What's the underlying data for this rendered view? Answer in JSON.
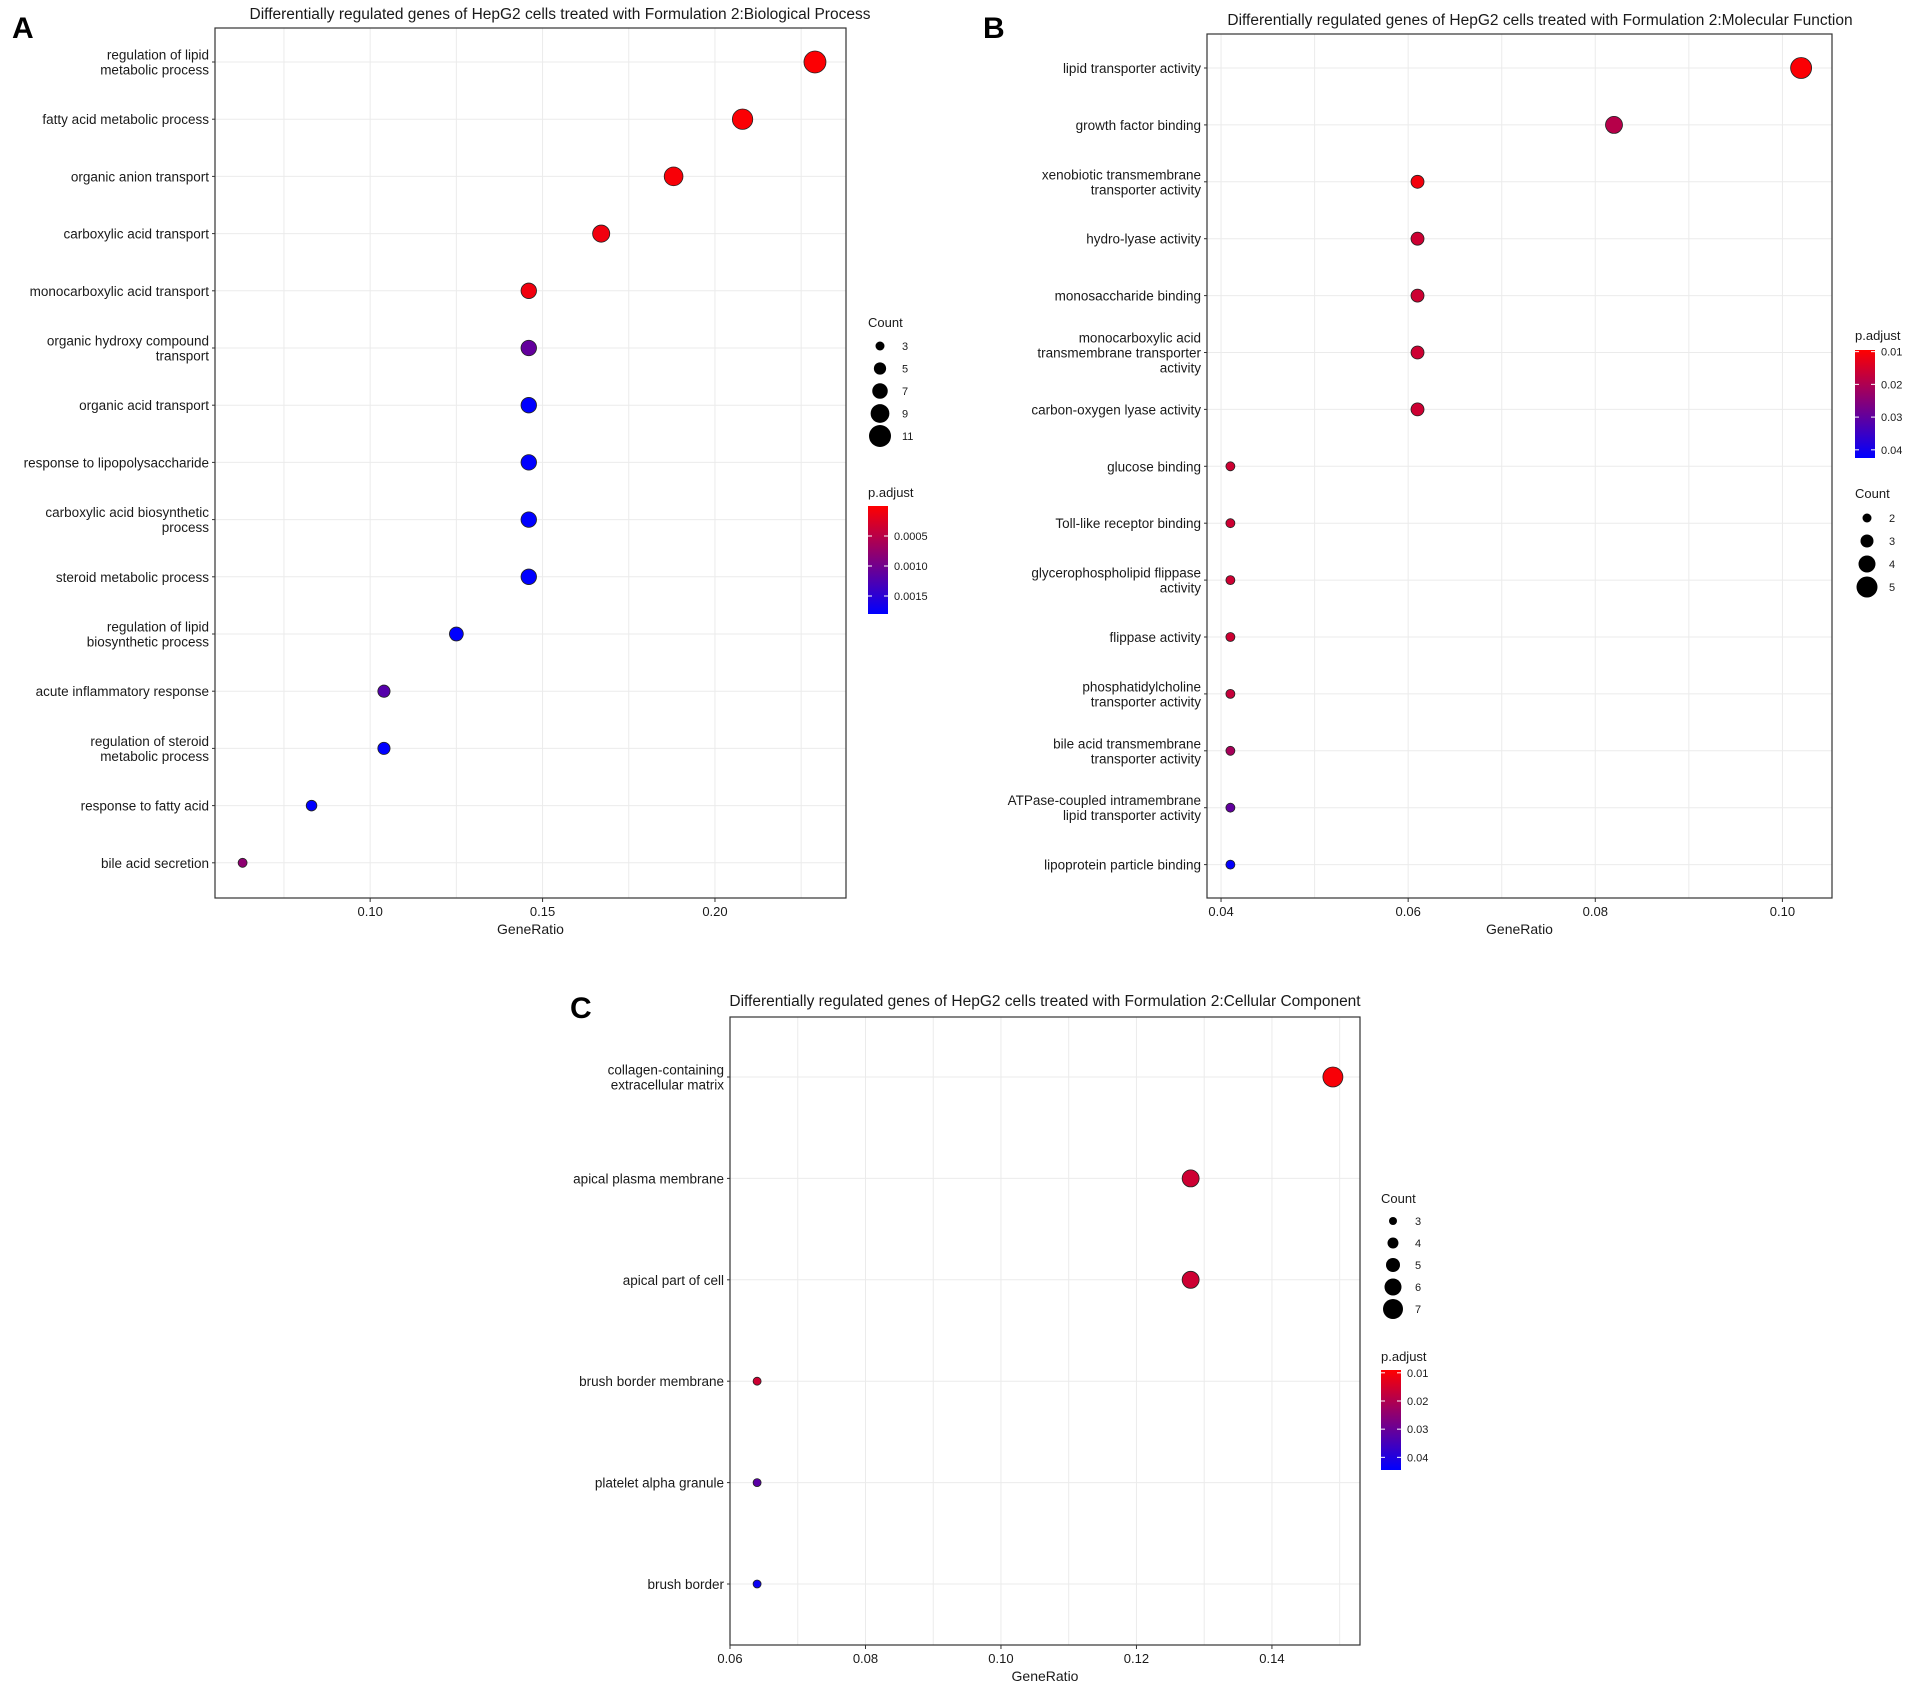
{
  "figure": {
    "panels": [
      "A",
      "B",
      "C"
    ]
  },
  "chart_data": [
    {
      "panel": "A",
      "type": "scatter",
      "title": "Differentially regulated genes of HepG2 cells treated with Formulation 2:Biological Process",
      "xlabel": "GeneRatio",
      "ylabel": "",
      "xlim": [
        0.055,
        0.238
      ],
      "x_ticks": [
        0.1,
        0.15,
        0.2
      ],
      "x_tick_labels": [
        "0.10",
        "0.15",
        "0.20"
      ],
      "grid": true,
      "categories": [
        "regulation of lipid\nmetabolic process",
        "fatty acid metabolic process",
        "organic anion transport",
        "carboxylic acid transport",
        "monocarboxylic acid transport",
        "organic hydroxy compound\ntransport",
        "organic acid transport",
        "response to lipopolysaccharide",
        "carboxylic acid biosynthetic\nprocess",
        "steroid metabolic process",
        "regulation of lipid\nbiosynthetic process",
        "acute inflammatory response",
        "regulation of steroid\nmetabolic process",
        "response to fatty acid",
        "bile acid secretion"
      ],
      "x": [
        0.229,
        0.208,
        0.188,
        0.167,
        0.146,
        0.146,
        0.146,
        0.146,
        0.146,
        0.146,
        0.125,
        0.104,
        0.104,
        0.083,
        0.063
      ],
      "count": [
        11,
        10,
        9,
        8,
        7,
        7,
        7,
        7,
        7,
        7,
        6,
        5,
        5,
        4,
        3
      ],
      "p_adjust": [
        2e-05,
        3e-05,
        5e-05,
        0.0001,
        0.0001,
        0.0011,
        0.0018,
        0.0018,
        0.0018,
        0.0018,
        0.0018,
        0.0012,
        0.0018,
        0.0018,
        0.0008
      ],
      "size_legend": {
        "title": "Count",
        "values": [
          3,
          5,
          7,
          9,
          11
        ],
        "labels": [
          "3",
          "5",
          "7",
          "9",
          "11"
        ]
      },
      "color_legend": {
        "title": "p.adjust",
        "min": 0.0,
        "max": 0.0018,
        "ticks": [
          0.0005,
          0.001,
          0.0015
        ],
        "tick_labels": [
          "0.0005",
          "0.0010",
          "0.0015"
        ]
      },
      "colors": {
        "low": "#ff0000",
        "high": "#0000ff"
      }
    },
    {
      "panel": "B",
      "type": "scatter",
      "title": "Differentially regulated genes of HepG2 cells treated with Formulation 2:Molecular Function",
      "xlabel": "GeneRatio",
      "ylabel": "",
      "xlim": [
        0.0385,
        0.1053
      ],
      "x_ticks": [
        0.04,
        0.06,
        0.08,
        0.1
      ],
      "x_tick_labels": [
        "0.04",
        "0.06",
        "0.08",
        "0.10"
      ],
      "grid": true,
      "categories": [
        "lipid transporter activity",
        "growth factor binding",
        "xenobiotic transmembrane\ntransporter activity",
        "hydro-lyase activity",
        "monosaccharide binding",
        "monocarboxylic acid\ntransmembrane transporter\nactivity",
        "carbon-oxygen lyase activity",
        "glucose binding",
        "Toll-like receptor binding",
        "glycerophospholipid flippase\nactivity",
        "flippase activity",
        "phosphatidylcholine\ntransporter activity",
        "bile acid transmembrane\ntransporter activity",
        "ATPase-coupled intramembrane\nlipid transporter activity",
        "lipoprotein particle binding"
      ],
      "x": [
        0.102,
        0.082,
        0.061,
        0.061,
        0.061,
        0.061,
        0.061,
        0.041,
        0.041,
        0.041,
        0.041,
        0.041,
        0.041,
        0.041,
        0.041
      ],
      "count": [
        5,
        4,
        3,
        3,
        3,
        3,
        3,
        2,
        2,
        2,
        2,
        2,
        2,
        2,
        2
      ],
      "p_adjust": [
        0.01,
        0.019,
        0.011,
        0.016,
        0.016,
        0.016,
        0.016,
        0.016,
        0.016,
        0.016,
        0.016,
        0.017,
        0.021,
        0.03,
        0.042
      ],
      "size_legend": {
        "title": "Count",
        "values": [
          2,
          3,
          4,
          5
        ],
        "labels": [
          "2",
          "3",
          "4",
          "5"
        ]
      },
      "color_legend": {
        "title": "p.adjust",
        "min": 0.0095,
        "max": 0.0425,
        "ticks": [
          0.01,
          0.02,
          0.03,
          0.04
        ],
        "tick_labels": [
          "0.01",
          "0.02",
          "0.03",
          "0.04"
        ]
      },
      "colors": {
        "low": "#ff0000",
        "high": "#0000ff"
      }
    },
    {
      "panel": "C",
      "type": "scatter",
      "title": "Differentially regulated genes of HepG2 cells treated with Formulation 2:Cellular Component",
      "xlabel": "GeneRatio",
      "ylabel": "",
      "xlim": [
        0.06,
        0.153
      ],
      "x_ticks": [
        0.06,
        0.08,
        0.1,
        0.12,
        0.14
      ],
      "x_tick_labels": [
        "0.06",
        "0.08",
        "0.10",
        "0.12",
        "0.14"
      ],
      "grid": true,
      "categories": [
        "collagen-containing\nextracellular matrix",
        "apical plasma membrane",
        "apical part of cell",
        "brush border membrane",
        "platelet alpha granule",
        "brush border"
      ],
      "x": [
        0.149,
        0.128,
        0.128,
        0.064,
        0.064,
        0.064
      ],
      "count": [
        7,
        6,
        6,
        3,
        3,
        3
      ],
      "p_adjust": [
        0.01,
        0.016,
        0.016,
        0.016,
        0.032,
        0.043
      ],
      "size_legend": {
        "title": "Count",
        "values": [
          3,
          4,
          5,
          6,
          7
        ],
        "labels": [
          "3",
          "4",
          "5",
          "6",
          "7"
        ]
      },
      "color_legend": {
        "title": "p.adjust",
        "min": 0.009,
        "max": 0.0445,
        "ticks": [
          0.01,
          0.02,
          0.03,
          0.04
        ],
        "tick_labels": [
          "0.01",
          "0.02",
          "0.03",
          "0.04"
        ]
      },
      "colors": {
        "low": "#ff0000",
        "high": "#0000ff"
      }
    }
  ]
}
